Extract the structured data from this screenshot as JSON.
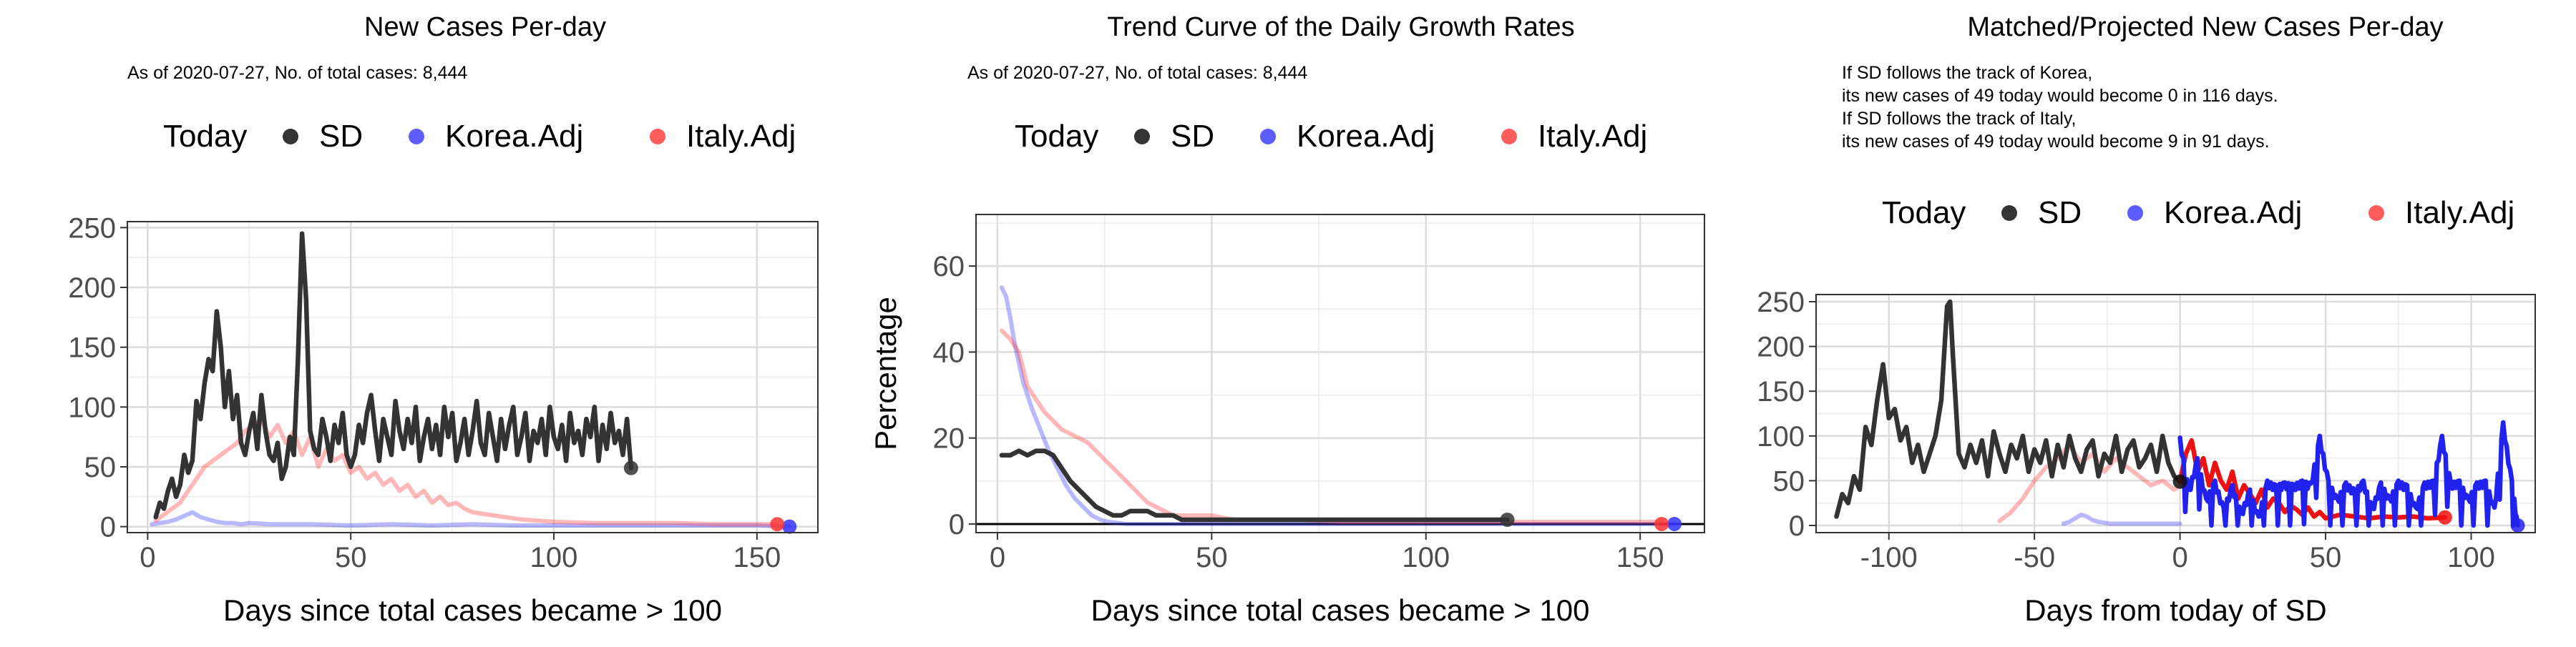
{
  "legend": {
    "title": "Today",
    "labels": [
      "SD",
      "Korea.Adj",
      "Italy.Adj"
    ]
  },
  "panels": [
    {
      "title": "New Cases Per-day",
      "subtitle_lines": [
        "As of 2020-07-27, No. of total cases: 8,444"
      ],
      "xlabel": "Days since total cases became > 100",
      "ylabel": ""
    },
    {
      "title": "Trend Curve of the Daily Growth Rates",
      "subtitle_lines": [
        "As of 2020-07-27, No. of total cases: 8,444"
      ],
      "xlabel": "Days since total cases became > 100",
      "ylabel": "Percentage"
    },
    {
      "title": "Matched/Projected New Cases Per-day",
      "subtitle_lines": [
        "If SD follows the track of Korea,",
        "its new cases of 49 today would become 0 in 116 days.",
        "If SD follows the track of Italy,",
        "its new cases of 49 today would become 9 in 91 days."
      ],
      "xlabel": "Days from today of SD",
      "ylabel": ""
    }
  ],
  "chart_data": [
    {
      "type": "line",
      "title": "New Cases Per-day",
      "xlabel": "Days since total cases became > 100",
      "xlim": [
        -5,
        165
      ],
      "ylim": [
        -5,
        255
      ],
      "xticks": [
        0,
        50,
        100,
        150
      ],
      "yticks": [
        0,
        50,
        100,
        150,
        200,
        250
      ],
      "series": [
        {
          "name": "SD",
          "color": "#333333",
          "opacity": 1,
          "x": [
            2,
            3,
            4,
            5,
            6,
            7,
            8,
            9,
            10,
            11,
            12,
            13,
            14,
            15,
            16,
            17,
            18,
            19,
            20,
            21,
            22,
            23,
            24,
            25,
            26,
            27,
            28,
            29,
            30,
            31,
            32,
            33,
            34,
            35,
            36,
            37,
            38,
            39,
            40,
            41,
            42,
            43,
            44,
            45,
            46,
            47,
            48,
            49,
            50,
            51,
            52,
            53,
            54,
            55,
            56,
            57,
            58,
            59,
            60,
            61,
            62,
            63,
            64,
            65,
            66,
            67,
            68,
            69,
            70,
            71,
            72,
            73,
            74,
            75,
            76,
            77,
            78,
            79,
            80,
            81,
            82,
            83,
            84,
            85,
            86,
            87,
            88,
            89,
            90,
            91,
            92,
            93,
            94,
            95,
            96,
            97,
            98,
            99,
            100,
            101,
            102,
            103,
            104,
            105,
            106,
            107,
            108,
            109,
            110,
            111,
            112,
            113,
            114,
            115,
            116,
            117,
            118,
            119
          ],
          "y": [
            8,
            20,
            15,
            30,
            40,
            25,
            35,
            60,
            45,
            55,
            105,
            90,
            120,
            140,
            130,
            180,
            150,
            100,
            130,
            90,
            110,
            70,
            60,
            80,
            95,
            65,
            110,
            80,
            60,
            55,
            70,
            40,
            50,
            75,
            60,
            140,
            245,
            190,
            80,
            65,
            60,
            90,
            75,
            55,
            85,
            70,
            95,
            60,
            50,
            60,
            85,
            70,
            95,
            110,
            80,
            55,
            90,
            75,
            60,
            105,
            80,
            65,
            90,
            70,
            100,
            55,
            75,
            90,
            65,
            85,
            60,
            100,
            75,
            95,
            55,
            70,
            90,
            60,
            80,
            105,
            70,
            60,
            95,
            75,
            55,
            90,
            65,
            85,
            100,
            60,
            75,
            95,
            55,
            80,
            70,
            90,
            60,
            100,
            75,
            65,
            85,
            55,
            95,
            70,
            80,
            60,
            90,
            75,
            100,
            55,
            85,
            65,
            95,
            70,
            80,
            60,
            90,
            49
          ]
        },
        {
          "name": "Korea.Adj",
          "color": "#3333ff",
          "opacity": 0.35,
          "x": [
            1,
            3,
            5,
            7,
            9,
            11,
            13,
            15,
            17,
            19,
            21,
            23,
            25,
            30,
            35,
            40,
            50,
            60,
            70,
            80,
            90,
            100,
            110,
            120,
            130,
            140,
            150,
            158
          ],
          "y": [
            2,
            3,
            4,
            6,
            9,
            12,
            8,
            6,
            4,
            3,
            3,
            2,
            3,
            2,
            2,
            2,
            1,
            2,
            1,
            2,
            1,
            1,
            1,
            1,
            1,
            1,
            1,
            0
          ]
        },
        {
          "name": "Italy.Adj",
          "color": "#ff3333",
          "opacity": 0.35,
          "x": [
            2,
            4,
            6,
            8,
            10,
            12,
            14,
            16,
            18,
            20,
            22,
            24,
            26,
            28,
            30,
            32,
            34,
            36,
            38,
            40,
            42,
            44,
            46,
            48,
            50,
            52,
            54,
            56,
            58,
            60,
            62,
            64,
            66,
            68,
            70,
            72,
            74,
            76,
            78,
            80,
            84,
            88,
            92,
            96,
            100,
            110,
            120,
            130,
            140,
            150,
            155
          ],
          "y": [
            5,
            10,
            15,
            20,
            30,
            40,
            50,
            55,
            60,
            65,
            70,
            80,
            85,
            90,
            75,
            85,
            70,
            80,
            60,
            75,
            50,
            65,
            55,
            60,
            45,
            50,
            40,
            45,
            35,
            40,
            30,
            35,
            25,
            30,
            20,
            25,
            18,
            20,
            15,
            12,
            10,
            8,
            6,
            5,
            4,
            3,
            3,
            3,
            2,
            2,
            2
          ]
        }
      ],
      "points": [
        {
          "series": "SD",
          "x": 119,
          "y": 49,
          "color": "#333333"
        },
        {
          "series": "Korea.Adj",
          "x": 158,
          "y": 0,
          "color": "#3333ff"
        },
        {
          "series": "Italy.Adj",
          "x": 155,
          "y": 2,
          "color": "#ff3333"
        }
      ]
    },
    {
      "type": "line",
      "title": "Trend Curve of the Daily Growth Rates",
      "xlabel": "Days since total cases became > 100",
      "ylabel": "Percentage",
      "xlim": [
        -5,
        165
      ],
      "ylim": [
        -2,
        72
      ],
      "xticks": [
        0,
        50,
        100,
        150
      ],
      "yticks": [
        0,
        20,
        40,
        60
      ],
      "hline": 0,
      "series": [
        {
          "name": "SD",
          "color": "#333333",
          "opacity": 1,
          "x": [
            1,
            3,
            5,
            7,
            9,
            11,
            13,
            15,
            17,
            19,
            21,
            23,
            25,
            27,
            29,
            31,
            33,
            35,
            37,
            39,
            41,
            43,
            45,
            50,
            55,
            60,
            70,
            80,
            90,
            100,
            110,
            119
          ],
          "y": [
            16,
            16,
            17,
            16,
            17,
            17,
            16,
            13,
            10,
            8,
            6,
            4,
            3,
            2,
            2,
            3,
            3,
            3,
            2,
            2,
            2,
            1,
            1,
            1,
            1,
            1,
            1,
            1,
            1,
            1,
            1,
            1
          ]
        },
        {
          "name": "Korea.Adj",
          "color": "#3333ff",
          "opacity": 0.35,
          "x": [
            1,
            2,
            3,
            4,
            6,
            8,
            10,
            12,
            14,
            16,
            18,
            20,
            22,
            24,
            26,
            30,
            35,
            40,
            50,
            60,
            80,
            100,
            120,
            140,
            158
          ],
          "y": [
            55,
            53,
            48,
            42,
            33,
            27,
            22,
            17,
            13,
            9,
            6,
            4,
            2,
            1,
            0.5,
            0,
            0,
            0,
            0,
            0,
            0,
            0,
            0,
            0,
            0
          ]
        },
        {
          "name": "Italy.Adj",
          "color": "#ff3333",
          "opacity": 0.35,
          "x": [
            1,
            3,
            5,
            7,
            9,
            11,
            13,
            15,
            17,
            19,
            21,
            23,
            25,
            27,
            29,
            31,
            33,
            35,
            37,
            39,
            41,
            45,
            50,
            55,
            60,
            70,
            80,
            90,
            100,
            120,
            140,
            155
          ],
          "y": [
            45,
            43,
            40,
            32,
            29,
            26,
            24,
            22,
            21,
            20,
            19,
            17,
            15,
            13,
            11,
            9,
            7,
            5,
            4,
            3,
            2,
            2,
            2,
            1,
            1,
            1,
            0.5,
            0.5,
            0.5,
            0.5,
            0.5,
            0.5
          ]
        }
      ],
      "points": [
        {
          "series": "SD",
          "x": 119,
          "y": 1,
          "color": "#333333"
        },
        {
          "series": "Korea.Adj",
          "x": 158,
          "y": 0,
          "color": "#3333ff"
        },
        {
          "series": "Italy.Adj",
          "x": 155,
          "y": 0,
          "color": "#ff3333"
        }
      ]
    },
    {
      "type": "line",
      "title": "Matched/Projected New Cases Per-day",
      "xlabel": "Days from today of SD",
      "xlim": [
        -125,
        122
      ],
      "ylim": [
        -8,
        258
      ],
      "xticks": [
        -100,
        -50,
        0,
        50,
        100
      ],
      "yticks": [
        0,
        50,
        100,
        150,
        200,
        250
      ],
      "series": [
        {
          "name": "SD",
          "color": "#333333",
          "opacity": 1,
          "x": [
            -118,
            -116,
            -114,
            -112,
            -110,
            -108,
            -106,
            -104,
            -102,
            -100,
            -98,
            -96,
            -94,
            -92,
            -90,
            -88,
            -86,
            -84,
            -82,
            -80,
            -79,
            -78,
            -76,
            -74,
            -72,
            -70,
            -68,
            -66,
            -64,
            -62,
            -60,
            -58,
            -56,
            -54,
            -52,
            -50,
            -48,
            -46,
            -44,
            -42,
            -40,
            -38,
            -36,
            -34,
            -32,
            -30,
            -28,
            -26,
            -24,
            -22,
            -20,
            -18,
            -16,
            -14,
            -12,
            -10,
            -8,
            -6,
            -4,
            -2,
            0
          ],
          "y": [
            10,
            35,
            25,
            55,
            40,
            110,
            90,
            140,
            180,
            120,
            130,
            95,
            110,
            70,
            90,
            60,
            80,
            100,
            140,
            245,
            250,
            190,
            80,
            65,
            90,
            70,
            95,
            55,
            105,
            80,
            60,
            90,
            75,
            100,
            60,
            85,
            70,
            95,
            55,
            90,
            65,
            100,
            75,
            60,
            85,
            95,
            55,
            80,
            70,
            100,
            60,
            85,
            95,
            65,
            75,
            90,
            60,
            100,
            70,
            55,
            49
          ]
        },
        {
          "name": "Italy.Adj (matched)",
          "color": "#ff3333",
          "opacity": 0.35,
          "x": [
            -62,
            -58,
            -54,
            -50,
            -46,
            -42,
            -38,
            -34,
            -30,
            -26,
            -22,
            -18,
            -14,
            -10,
            -6,
            -2,
            0
          ],
          "y": [
            5,
            15,
            30,
            50,
            65,
            75,
            90,
            70,
            80,
            60,
            75,
            65,
            55,
            45,
            50,
            40,
            45
          ]
        },
        {
          "name": "Korea.Adj (matched)",
          "color": "#3333ff",
          "opacity": 0.35,
          "x": [
            -40,
            -38,
            -36,
            -34,
            -32,
            -30,
            -28,
            -26,
            -24,
            -20,
            -16,
            -12,
            -8,
            -4,
            0
          ],
          "y": [
            2,
            4,
            8,
            12,
            10,
            6,
            4,
            3,
            2,
            2,
            2,
            2,
            2,
            2,
            2
          ]
        },
        {
          "name": "Italy.Adj (projected)",
          "color": "#ee1111",
          "opacity": 1,
          "x": [
            0,
            2,
            4,
            6,
            8,
            10,
            12,
            14,
            16,
            18,
            20,
            22,
            24,
            26,
            28,
            30,
            32,
            34,
            36,
            38,
            40,
            42,
            44,
            46,
            48,
            50,
            55,
            60,
            65,
            70,
            75,
            80,
            85,
            91
          ],
          "y": [
            49,
            80,
            95,
            60,
            75,
            45,
            70,
            50,
            40,
            60,
            30,
            45,
            35,
            25,
            40,
            20,
            30,
            25,
            15,
            22,
            18,
            12,
            20,
            10,
            15,
            8,
            12,
            10,
            8,
            10,
            9,
            10,
            8,
            9
          ]
        },
        {
          "name": "Korea.Adj (projected)",
          "color": "#2222ee",
          "opacity": 1,
          "style": "spiky",
          "x": [
            0,
            3,
            6,
            9,
            12,
            15,
            18,
            21,
            24,
            27,
            30,
            33,
            36,
            39,
            42,
            45,
            48,
            51,
            54,
            57,
            60,
            63,
            66,
            69,
            72,
            75,
            78,
            81,
            84,
            87,
            90,
            93,
            96,
            99,
            102,
            105,
            108,
            111,
            114,
            116
          ],
          "y": [
            98,
            40,
            75,
            30,
            50,
            20,
            45,
            15,
            40,
            10,
            50,
            45,
            48,
            46,
            50,
            47,
            100,
            50,
            30,
            48,
            40,
            50,
            20,
            48,
            30,
            50,
            45,
            20,
            48,
            50,
            100,
            48,
            50,
            30,
            48,
            50,
            20,
            115,
            50,
            0
          ]
        }
      ],
      "points": [
        {
          "series": "SD",
          "x": 0,
          "y": 49,
          "color": "#111111"
        },
        {
          "series": "Korea.Adj",
          "x": 116,
          "y": 0,
          "color": "#2222ee"
        },
        {
          "series": "Italy.Adj",
          "x": 91,
          "y": 9,
          "color": "#ee1111"
        }
      ]
    }
  ]
}
